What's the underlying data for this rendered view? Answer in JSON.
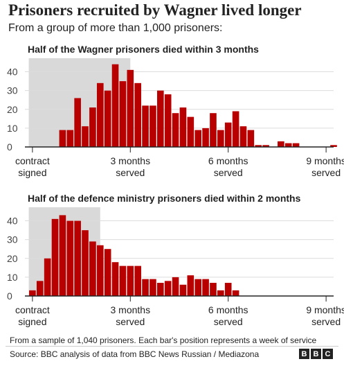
{
  "title": "Prisoners recruited by Wagner lived longer",
  "subtitle": "From a group of more than 1,000 prisoners:",
  "note": "From a sample of 1,040 prisoners. Each bar's position represents a week of service",
  "source": "Source: BBC analysis of data from BBC News Russian / Mediazona",
  "logo": [
    "B",
    "B",
    "C"
  ],
  "colors": {
    "bar": "#b80000",
    "shade": "#d9d9d9",
    "grid": "#dcdcdc",
    "axis": "#222222"
  },
  "chart_data": [
    {
      "type": "bar",
      "title": "Half of the Wagner prisoners died within 3 months",
      "x_unit": "weeks of service",
      "xlim": [
        -1,
        40
      ],
      "ylim": [
        0,
        45
      ],
      "yticks": [
        0,
        10,
        20,
        30,
        40
      ],
      "grid": true,
      "shaded_range_weeks": [
        0,
        13
      ],
      "xticks": [
        {
          "week": 0,
          "line1": "contract",
          "line2": "signed"
        },
        {
          "week": 13,
          "line1": "3 months",
          "line2": "served"
        },
        {
          "week": 26,
          "line1": "6 months",
          "line2": "served"
        },
        {
          "week": 39,
          "line1": "9 months",
          "line2": "served"
        }
      ],
      "x": [
        0,
        1,
        2,
        3,
        4,
        5,
        6,
        7,
        8,
        9,
        10,
        11,
        12,
        13,
        14,
        15,
        16,
        17,
        18,
        19,
        20,
        21,
        22,
        23,
        24,
        25,
        26,
        27,
        28,
        29,
        30,
        31,
        32,
        33,
        34,
        35,
        36,
        37,
        38,
        39,
        40
      ],
      "values": [
        0,
        0,
        0,
        0,
        9,
        9,
        26,
        11,
        21,
        34,
        30,
        44,
        35,
        41,
        34,
        22,
        22,
        30,
        28,
        18,
        21,
        16,
        9,
        10,
        18,
        9,
        13,
        19,
        11,
        9,
        1,
        1,
        0,
        3,
        2,
        2,
        0,
        0,
        0,
        0,
        1
      ]
    },
    {
      "type": "bar",
      "title": "Half of the defence ministry prisoners died within 2 months",
      "x_unit": "weeks of service",
      "xlim": [
        -1,
        40
      ],
      "ylim": [
        0,
        45
      ],
      "yticks": [
        0,
        10,
        20,
        30,
        40
      ],
      "grid": true,
      "shaded_range_weeks": [
        0,
        9
      ],
      "xticks": [
        {
          "week": 0,
          "line1": "contract",
          "line2": "signed"
        },
        {
          "week": 13,
          "line1": "3 months",
          "line2": "served"
        },
        {
          "week": 26,
          "line1": "6 months",
          "line2": "served"
        },
        {
          "week": 39,
          "line1": "9 months",
          "line2": "served"
        }
      ],
      "x": [
        0,
        1,
        2,
        3,
        4,
        5,
        6,
        7,
        8,
        9,
        10,
        11,
        12,
        13,
        14,
        15,
        16,
        17,
        18,
        19,
        20,
        21,
        22,
        23,
        24,
        25,
        26,
        27,
        28,
        29,
        30,
        31
      ],
      "values": [
        3,
        8,
        20,
        41,
        43,
        40,
        40,
        35,
        29,
        27,
        25,
        18,
        16,
        16,
        16,
        9,
        9,
        7,
        8,
        10,
        6,
        11,
        9,
        9,
        7,
        3,
        7,
        3,
        0,
        0,
        0,
        0
      ]
    }
  ]
}
